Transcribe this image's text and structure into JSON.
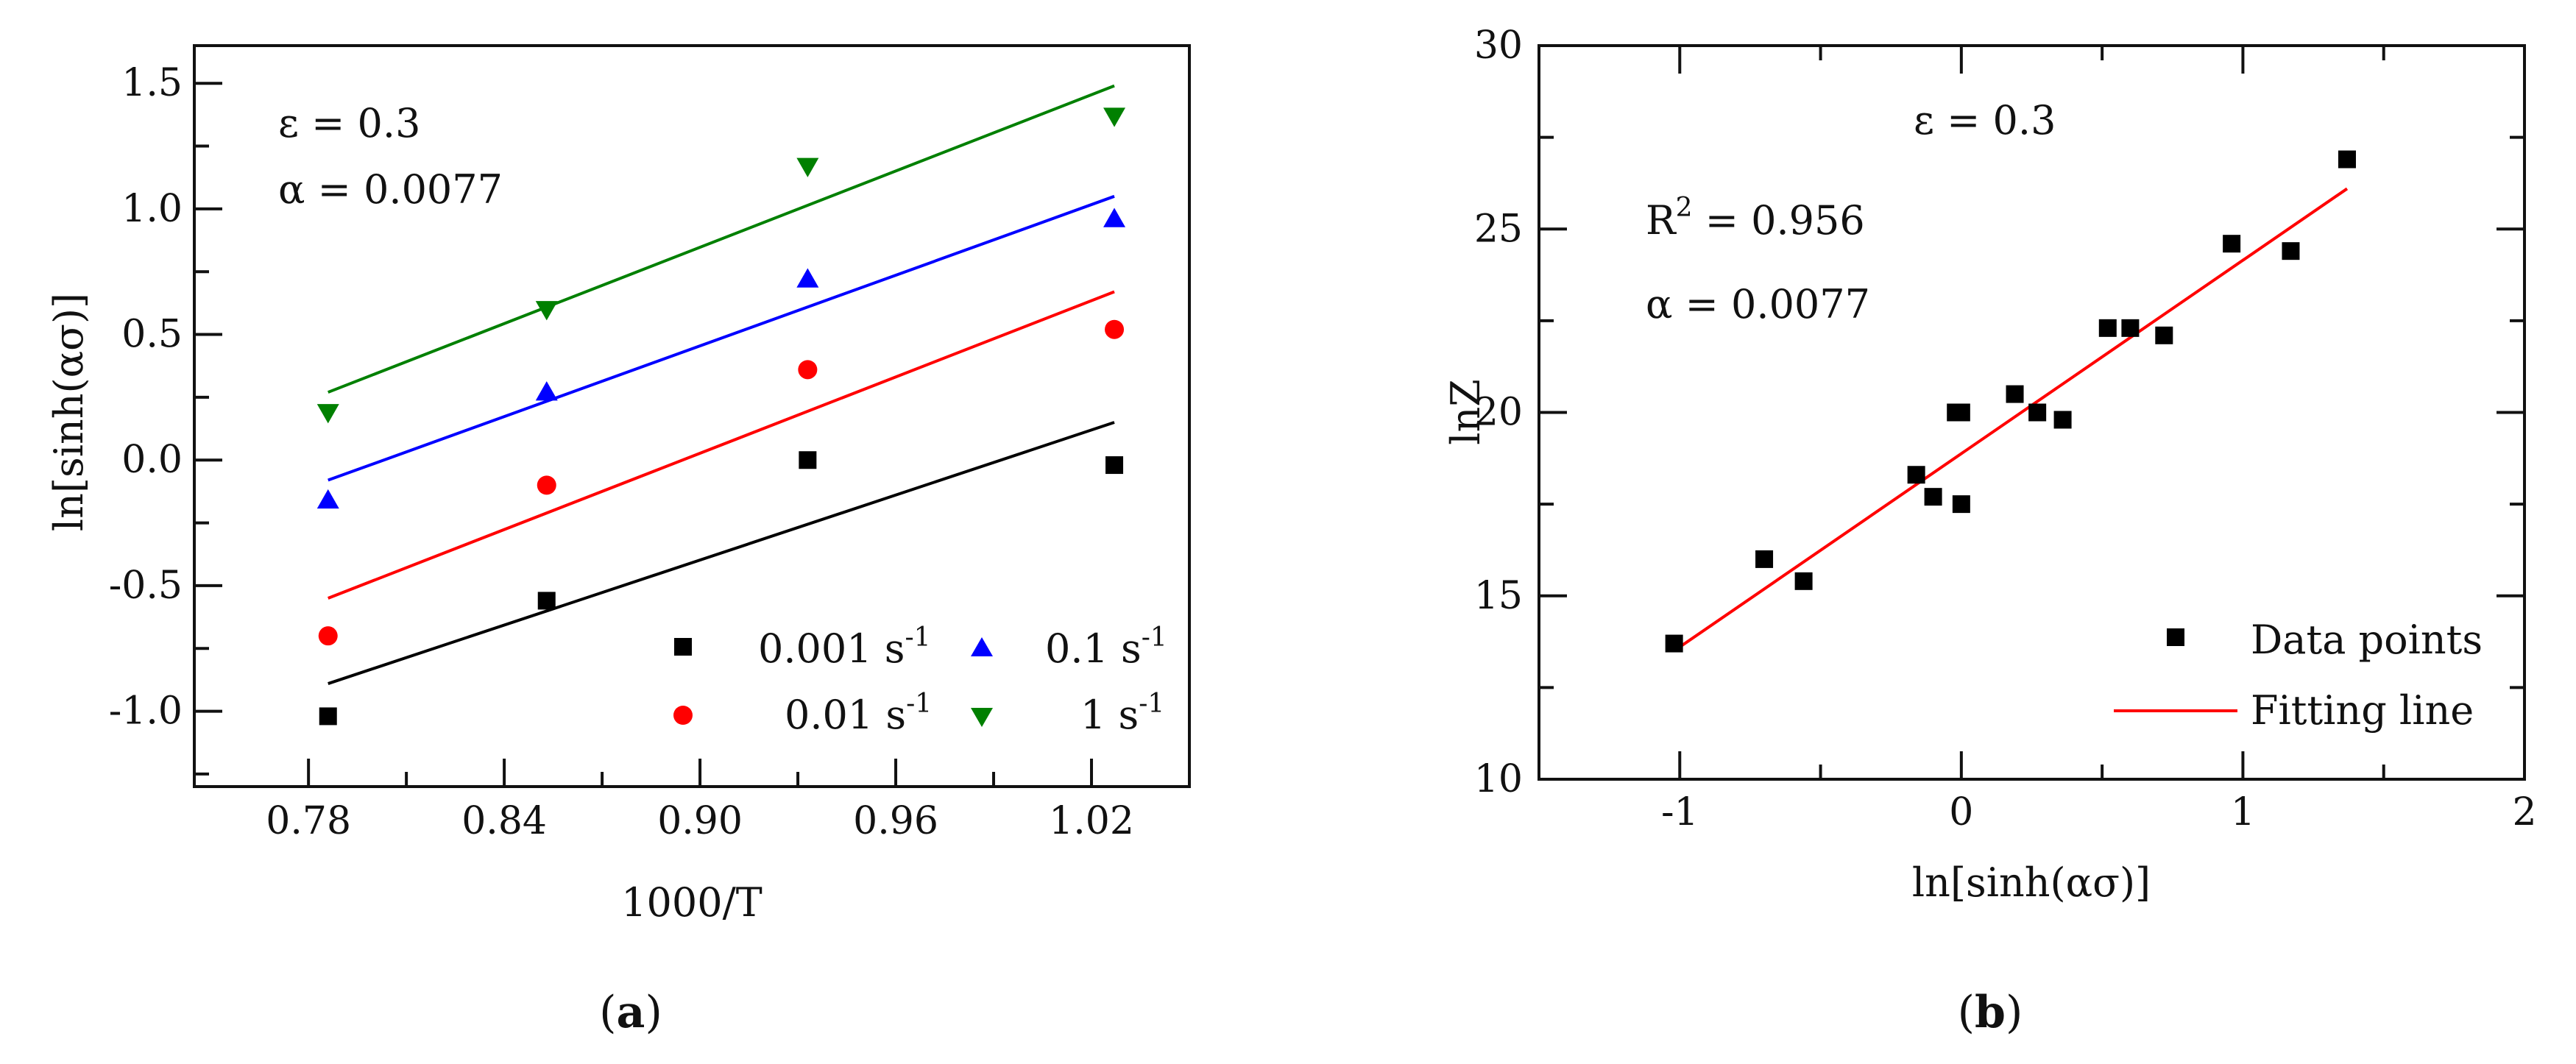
{
  "figure": {
    "panel_a_label": "(a)",
    "panel_b_label": "(b)"
  },
  "chart_data": [
    {
      "type": "scatter",
      "panel": "(a)",
      "title": "",
      "xlabel": "1000/T",
      "ylabel": "ln[sinh(ασ)]",
      "xlim": [
        0.745,
        1.05
      ],
      "ylim": [
        -1.3,
        1.65
      ],
      "xticks": [
        0.78,
        0.84,
        0.9,
        0.96,
        1.02
      ],
      "xtick_labels": [
        "0.78",
        "0.84",
        "0.90",
        "0.96",
        "1.02"
      ],
      "yticks": [
        -1.0,
        -0.5,
        0.0,
        0.5,
        1.0,
        1.5
      ],
      "ytick_labels": [
        "-1.0",
        "-0.5",
        "0.0",
        "0.5",
        "1.0",
        "1.5"
      ],
      "annotations": [
        "ε = 0.3",
        "α = 0.0077"
      ],
      "legend_position": "bottom-right",
      "series": [
        {
          "name": "0.001 s",
          "name_sup": "-1",
          "marker": "square",
          "color": "#000000",
          "x": [
            0.786,
            0.853,
            0.933,
            1.027
          ],
          "y": [
            -1.02,
            -0.56,
            0.0,
            -0.02
          ],
          "fit": {
            "x": [
              0.786,
              1.027
            ],
            "y": [
              -0.89,
              0.15
            ]
          }
        },
        {
          "name": "0.01 s",
          "name_sup": "-1",
          "marker": "circle",
          "color": "#ff0000",
          "x": [
            0.786,
            0.853,
            0.933,
            1.027
          ],
          "y": [
            -0.7,
            -0.1,
            0.36,
            0.52
          ],
          "fit": {
            "x": [
              0.786,
              1.027
            ],
            "y": [
              -0.55,
              0.67
            ]
          }
        },
        {
          "name": "0.1 s",
          "name_sup": "-1",
          "marker": "triangle-up",
          "color": "#0000ff",
          "x": [
            0.786,
            0.853,
            0.933,
            1.027
          ],
          "y": [
            -0.16,
            0.27,
            0.72,
            0.96
          ],
          "fit": {
            "x": [
              0.786,
              1.027
            ],
            "y": [
              -0.08,
              1.05
            ]
          }
        },
        {
          "name": "1 s",
          "name_sup": "-1",
          "marker": "triangle-down",
          "color": "#008000",
          "x": [
            0.786,
            0.853,
            0.933,
            1.027
          ],
          "y": [
            0.19,
            0.6,
            1.17,
            1.37
          ],
          "fit": {
            "x": [
              0.786,
              1.027
            ],
            "y": [
              0.27,
              1.49
            ]
          }
        }
      ]
    },
    {
      "type": "scatter",
      "panel": "(b)",
      "title": "",
      "xlabel": "ln[sinh(ασ)]",
      "ylabel": "lnZ",
      "xlim": [
        -1.5,
        2.0
      ],
      "ylim": [
        10,
        30
      ],
      "xticks": [
        -1,
        0,
        1,
        2
      ],
      "xtick_labels": [
        "-1",
        "0",
        "1",
        "2"
      ],
      "yticks": [
        10,
        15,
        20,
        25,
        30
      ],
      "ytick_labels": [
        "10",
        "15",
        "20",
        "25",
        "30"
      ],
      "annotations": [
        "ε = 0.3",
        "R",
        "2",
        " = 0.956",
        "α = 0.0077"
      ],
      "legend_position": "bottom-right",
      "series": [
        {
          "name": "Data points",
          "marker": "square",
          "color": "#000000",
          "x": [
            -1.02,
            -0.7,
            -0.56,
            -0.16,
            -0.1,
            -0.02,
            0.0,
            0.0,
            0.19,
            0.27,
            0.36,
            0.52,
            0.6,
            0.72,
            0.96,
            1.17,
            1.37
          ],
          "y": [
            13.7,
            16.0,
            15.4,
            18.3,
            17.7,
            20.0,
            17.5,
            20.0,
            20.5,
            20.0,
            19.8,
            22.3,
            22.3,
            22.1,
            24.6,
            24.4,
            26.9
          ]
        }
      ],
      "fit": {
        "name": "Fitting line",
        "color": "#ff0000",
        "x": [
          -1.02,
          1.37
        ],
        "y": [
          13.5,
          26.1
        ]
      }
    }
  ]
}
